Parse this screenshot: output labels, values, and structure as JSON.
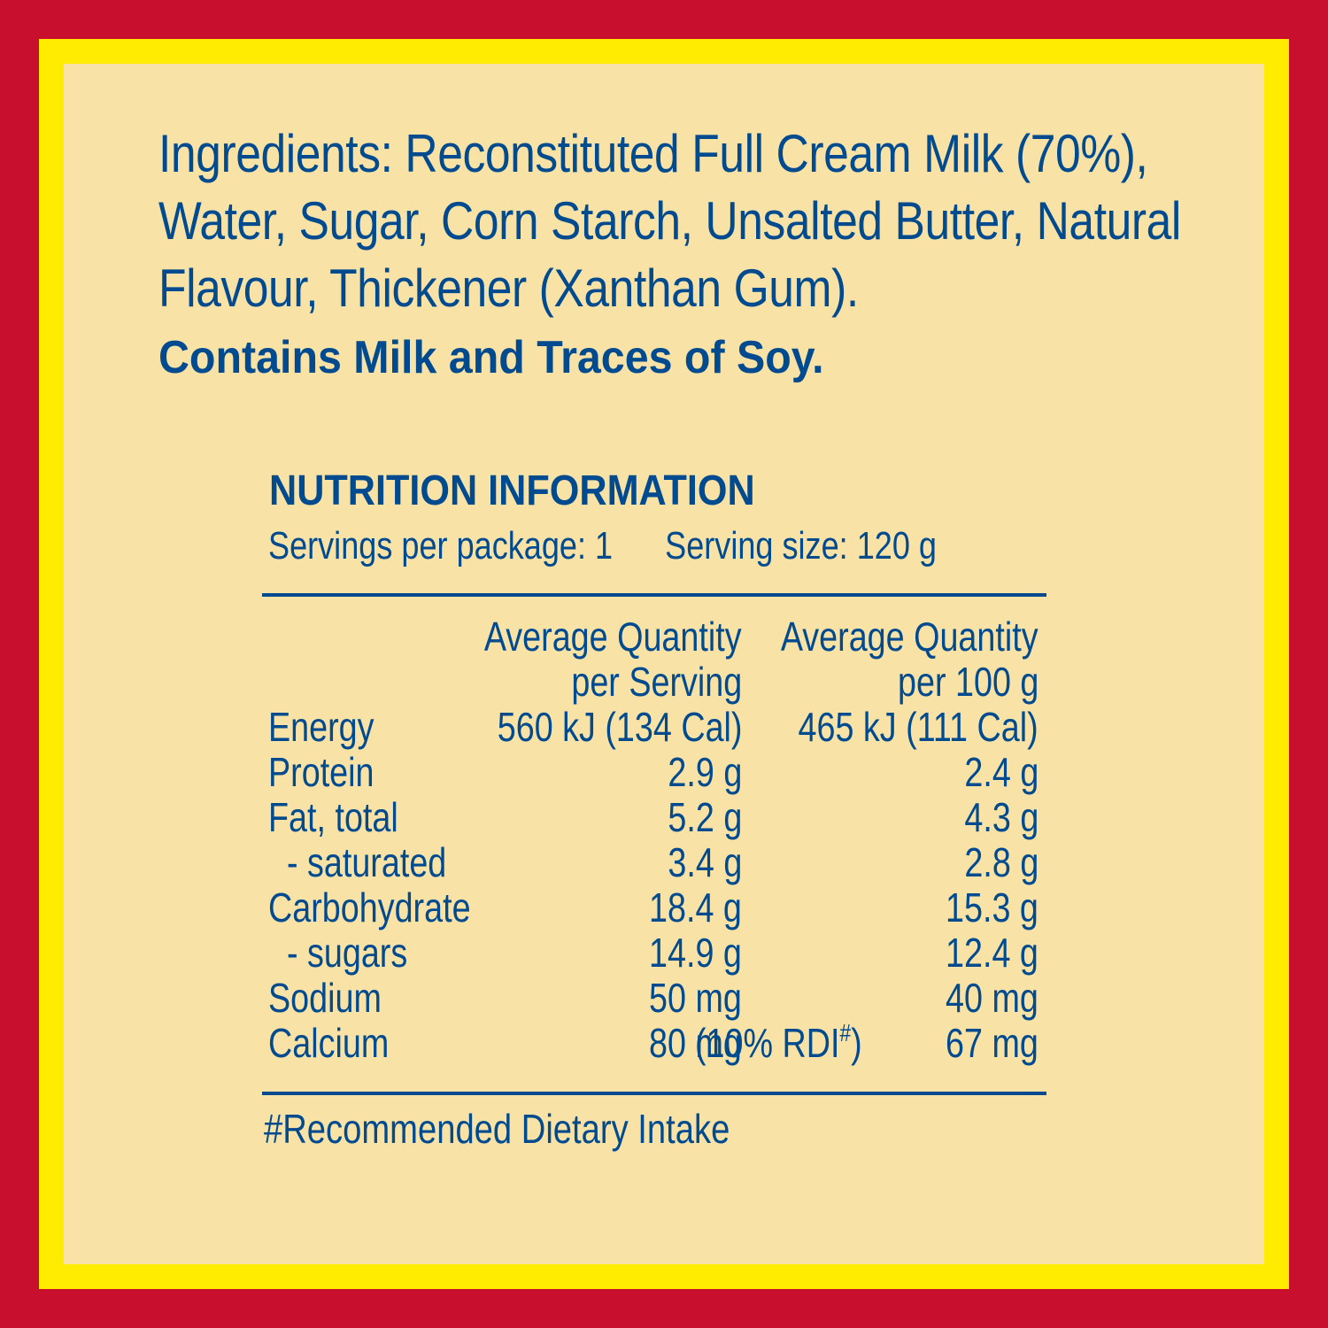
{
  "ingredients": {
    "text": "Ingredients: Reconstituted Full Cream Milk (70%), Water, Sugar, Corn Starch, Unsalted Butter, Natural Flavour, Thickener (Xanthan Gum).",
    "allergens": "Contains Milk and Traces of Soy."
  },
  "nutrition": {
    "title": "NUTRITION INFORMATION",
    "servings_per_package": "Servings per package: 1",
    "serving_size": "Serving size: 120 g",
    "header": {
      "per_serving_line1": "Average Quantity",
      "per_serving_line2": "per Serving",
      "per_100g_line1": "Average Quantity",
      "per_100g_line2": "per 100 g"
    },
    "rows": [
      {
        "name": "Energy",
        "per_serving": "560 kJ (134 Cal)",
        "per_100g": "465 kJ (111 Cal)"
      },
      {
        "name": "Protein",
        "per_serving": "2.9 g",
        "per_100g": "2.4 g"
      },
      {
        "name": "Fat, total",
        "per_serving": "5.2 g",
        "per_100g": "4.3 g"
      },
      {
        "name": "  - saturated",
        "per_serving": "3.4 g",
        "per_100g": "2.8 g"
      },
      {
        "name": "Carbohydrate",
        "per_serving": "18.4 g",
        "per_100g": "15.3 g"
      },
      {
        "name": "  - sugars",
        "per_serving": "14.9 g",
        "per_100g": "12.4 g"
      },
      {
        "name": "Sodium",
        "per_serving": "50 mg",
        "per_100g": "40 mg"
      },
      {
        "name": "Calcium",
        "per_serving": "80 mg",
        "note": "(10% RDI",
        "note_mark": "#",
        "note_close": ")",
        "per_100g": "67 mg"
      }
    ],
    "footnote": "#Recommended Dietary Intake"
  },
  "colors": {
    "outer_border": "#c8102e",
    "inner_border": "#ffec00",
    "panel": "#f9e2a5",
    "text": "#004a8f"
  }
}
